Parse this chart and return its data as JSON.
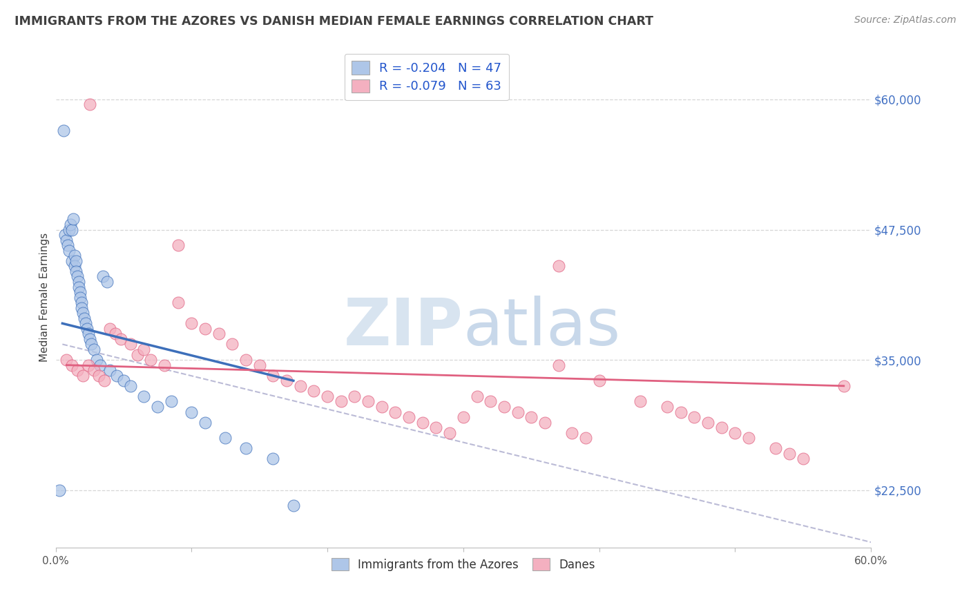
{
  "title": "IMMIGRANTS FROM THE AZORES VS DANISH MEDIAN FEMALE EARNINGS CORRELATION CHART",
  "source": "Source: ZipAtlas.com",
  "ylabel": "Median Female Earnings",
  "xlim": [
    0.0,
    0.6
  ],
  "ylim": [
    17000,
    65000
  ],
  "x_ticks": [
    0.0,
    0.1,
    0.2,
    0.3,
    0.4,
    0.5,
    0.6
  ],
  "x_tick_labels": [
    "0.0%",
    "",
    "",
    "",
    "",
    "",
    "60.0%"
  ],
  "y_ticks_right": [
    22500,
    35000,
    47500,
    60000
  ],
  "y_tick_labels_right": [
    "$22,500",
    "$35,000",
    "$47,500",
    "$60,000"
  ],
  "legend_label1": "R = -0.204   N = 47",
  "legend_label2": "R = -0.079   N = 63",
  "legend_bottom1": "Immigrants from the Azores",
  "legend_bottom2": "Danes",
  "color_blue": "#aec6e8",
  "color_pink": "#f4b0c0",
  "line_blue": "#3d6fba",
  "line_pink": "#e06080",
  "line_dash": "#aaaacc",
  "background": "#ffffff",
  "grid_color": "#cccccc",
  "title_color": "#404040",
  "right_label_color": "#4472c4",
  "watermark_zip": "ZIP",
  "watermark_atlas": "atlas",
  "blue_dots_x": [
    0.003,
    0.006,
    0.007,
    0.008,
    0.009,
    0.01,
    0.01,
    0.011,
    0.012,
    0.012,
    0.013,
    0.014,
    0.014,
    0.015,
    0.015,
    0.016,
    0.017,
    0.017,
    0.018,
    0.018,
    0.019,
    0.019,
    0.02,
    0.021,
    0.022,
    0.023,
    0.024,
    0.025,
    0.026,
    0.028,
    0.03,
    0.033,
    0.035,
    0.038,
    0.04,
    0.045,
    0.05,
    0.055,
    0.065,
    0.075,
    0.085,
    0.1,
    0.11,
    0.125,
    0.14,
    0.16,
    0.175
  ],
  "blue_dots_y": [
    22500,
    57000,
    47000,
    46500,
    46000,
    47500,
    45500,
    48000,
    47500,
    44500,
    48500,
    45000,
    44000,
    44500,
    43500,
    43000,
    42500,
    42000,
    41500,
    41000,
    40500,
    40000,
    39500,
    39000,
    38500,
    38000,
    37500,
    37000,
    36500,
    36000,
    35000,
    34500,
    43000,
    42500,
    34000,
    33500,
    33000,
    32500,
    31500,
    30500,
    31000,
    30000,
    29000,
    27500,
    26500,
    25500,
    21000
  ],
  "pink_dots_x": [
    0.008,
    0.012,
    0.016,
    0.02,
    0.024,
    0.028,
    0.032,
    0.036,
    0.04,
    0.044,
    0.048,
    0.055,
    0.06,
    0.065,
    0.07,
    0.08,
    0.09,
    0.1,
    0.11,
    0.12,
    0.13,
    0.14,
    0.15,
    0.16,
    0.17,
    0.18,
    0.19,
    0.2,
    0.21,
    0.22,
    0.23,
    0.24,
    0.25,
    0.26,
    0.27,
    0.28,
    0.29,
    0.3,
    0.31,
    0.32,
    0.33,
    0.34,
    0.35,
    0.36,
    0.37,
    0.38,
    0.39,
    0.4,
    0.43,
    0.45,
    0.46,
    0.47,
    0.48,
    0.49,
    0.5,
    0.51,
    0.53,
    0.54,
    0.55,
    0.58,
    0.025,
    0.09,
    0.37
  ],
  "pink_dots_y": [
    35000,
    34500,
    34000,
    33500,
    34500,
    34000,
    33500,
    33000,
    38000,
    37500,
    37000,
    36500,
    35500,
    36000,
    35000,
    34500,
    40500,
    38500,
    38000,
    37500,
    36500,
    35000,
    34500,
    33500,
    33000,
    32500,
    32000,
    31500,
    31000,
    31500,
    31000,
    30500,
    30000,
    29500,
    29000,
    28500,
    28000,
    29500,
    31500,
    31000,
    30500,
    30000,
    29500,
    29000,
    34500,
    28000,
    27500,
    33000,
    31000,
    30500,
    30000,
    29500,
    29000,
    28500,
    28000,
    27500,
    26500,
    26000,
    25500,
    32500,
    59500,
    46000,
    44000
  ],
  "blue_line_x": [
    0.005,
    0.175
  ],
  "blue_line_y": [
    38500,
    33000
  ],
  "pink_line_x": [
    0.008,
    0.58
  ],
  "pink_line_y": [
    34500,
    32500
  ],
  "dash_line_x": [
    0.005,
    0.6
  ],
  "dash_line_y": [
    36500,
    17500
  ]
}
